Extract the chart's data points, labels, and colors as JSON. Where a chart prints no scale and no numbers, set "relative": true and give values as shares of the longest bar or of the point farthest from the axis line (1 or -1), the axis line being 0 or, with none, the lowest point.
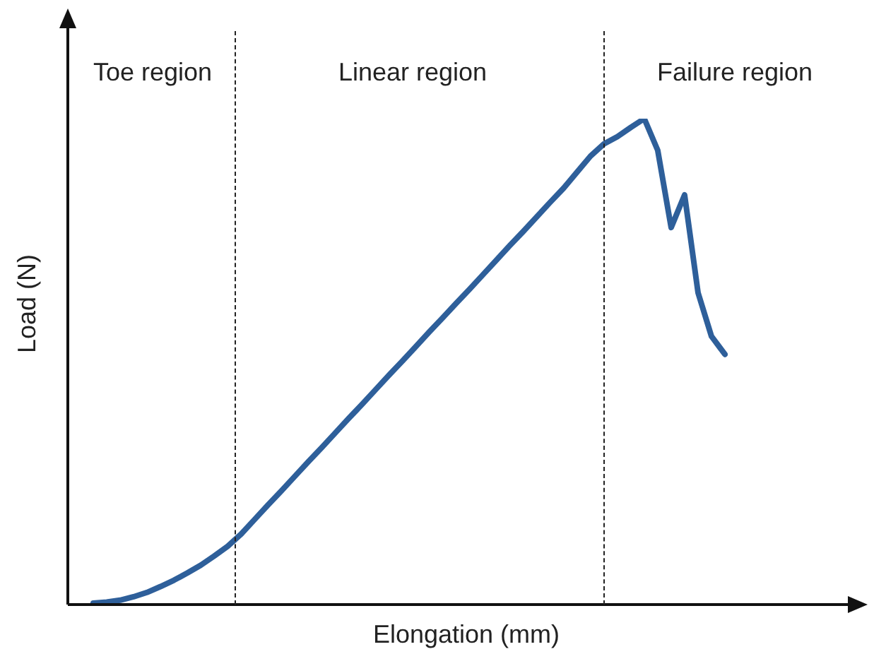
{
  "chart_data": {
    "type": "line",
    "relative": true,
    "xlabel": "Elongation (mm)",
    "ylabel": "Load (N)",
    "tick_labels": false,
    "legend": false,
    "marker": "none",
    "line_style": "solid",
    "annotations": [
      "Toe region",
      "Linear region",
      "Failure region"
    ],
    "categories": [
      null,
      null,
      null,
      null,
      null,
      null,
      null,
      null,
      null,
      null,
      null,
      null,
      null,
      null,
      null,
      null,
      null,
      null,
      null,
      null,
      null,
      null,
      null,
      null,
      null,
      null,
      null,
      null,
      null,
      null,
      null,
      null,
      null,
      null,
      null,
      null,
      null,
      null,
      null,
      null,
      null,
      null,
      null,
      null,
      null,
      null,
      null,
      null
    ],
    "series": [
      {
        "color": "#2e5f9a",
        "values": [
          0.003,
          0.005,
          0.009,
          0.016,
          0.025,
          0.037,
          0.05,
          0.065,
          0.081,
          0.1,
          0.12,
          0.145,
          0.175,
          0.205,
          0.234,
          0.264,
          0.294,
          0.323,
          0.353,
          0.383,
          0.412,
          0.442,
          0.472,
          0.501,
          0.531,
          0.561,
          0.59,
          0.62,
          0.649,
          0.679,
          0.709,
          0.739,
          0.768,
          0.798,
          0.828,
          0.857,
          0.89,
          0.923,
          0.948,
          0.963,
          0.982,
          1.0,
          0.935,
          0.776,
          0.843,
          0.642,
          0.552,
          0.515
        ]
      }
    ]
  }
}
